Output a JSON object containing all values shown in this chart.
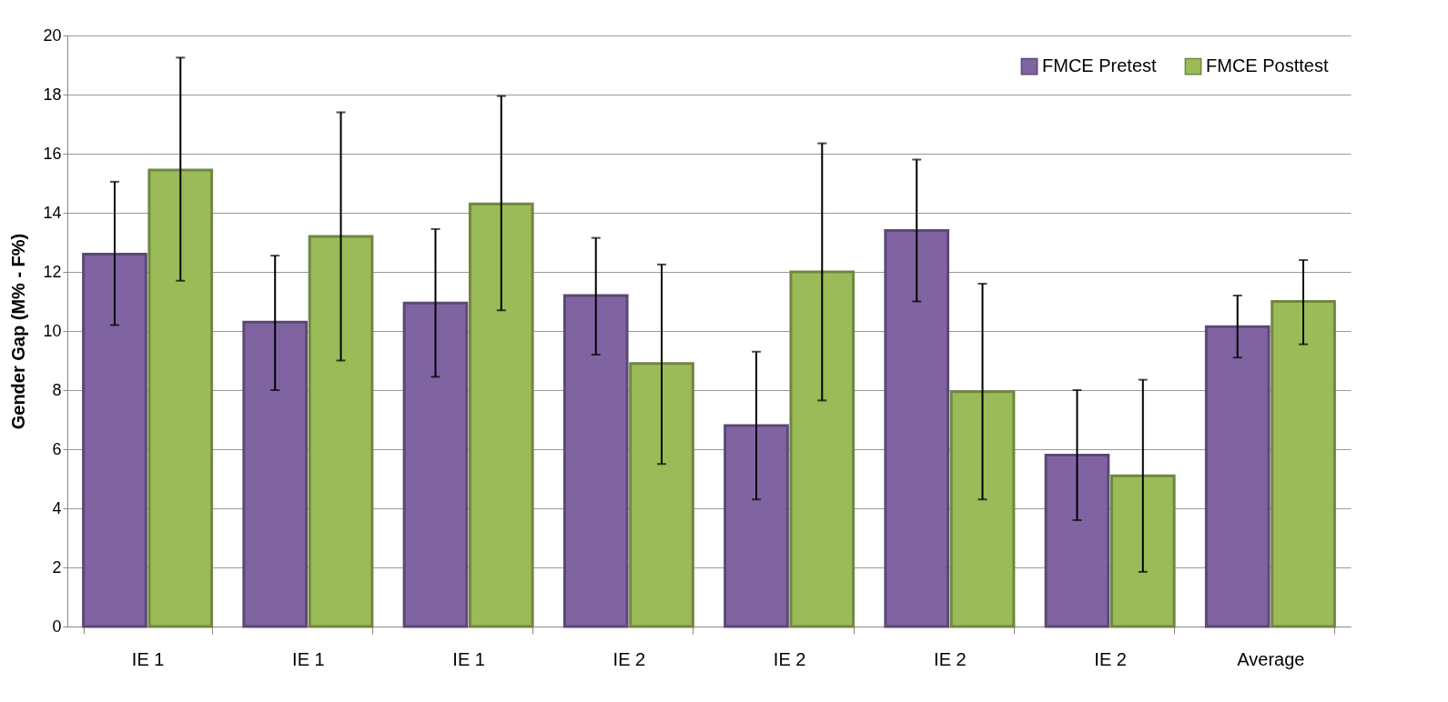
{
  "chart_data": {
    "type": "bar",
    "ylabel": "Gender Gap (M% - F%)",
    "categories": [
      "IE 1",
      "IE 1",
      "IE 1",
      "IE 2",
      "IE 2",
      "IE 2",
      "IE 2",
      "Average"
    ],
    "series": [
      {
        "name": "FMCE Pretest",
        "color": "#8064a2",
        "values": [
          12.6,
          10.3,
          10.95,
          11.2,
          6.8,
          13.4,
          5.8,
          10.15
        ],
        "errors": [
          [
            10.2,
            15.05
          ],
          [
            8.0,
            12.55
          ],
          [
            8.45,
            13.45
          ],
          [
            9.2,
            13.15
          ],
          [
            4.3,
            9.3
          ],
          [
            11.0,
            15.8
          ],
          [
            3.6,
            8.0
          ],
          [
            9.1,
            11.2
          ]
        ]
      },
      {
        "name": "FMCE Posttest",
        "color": "#9bbb59",
        "values": [
          15.45,
          13.2,
          14.3,
          8.9,
          12.0,
          7.95,
          5.1,
          11.0
        ],
        "errors": [
          [
            11.7,
            19.25
          ],
          [
            9.0,
            17.4
          ],
          [
            10.7,
            17.95
          ],
          [
            5.5,
            12.25
          ],
          [
            7.65,
            16.35
          ],
          [
            4.3,
            11.6
          ],
          [
            1.85,
            8.35
          ],
          [
            9.55,
            12.4
          ]
        ]
      }
    ],
    "ylim": [
      0,
      20
    ],
    "yticks": [
      0,
      2,
      4,
      6,
      8,
      10,
      12,
      14,
      16,
      18,
      20
    ],
    "grid": "y",
    "legend": "top right"
  }
}
